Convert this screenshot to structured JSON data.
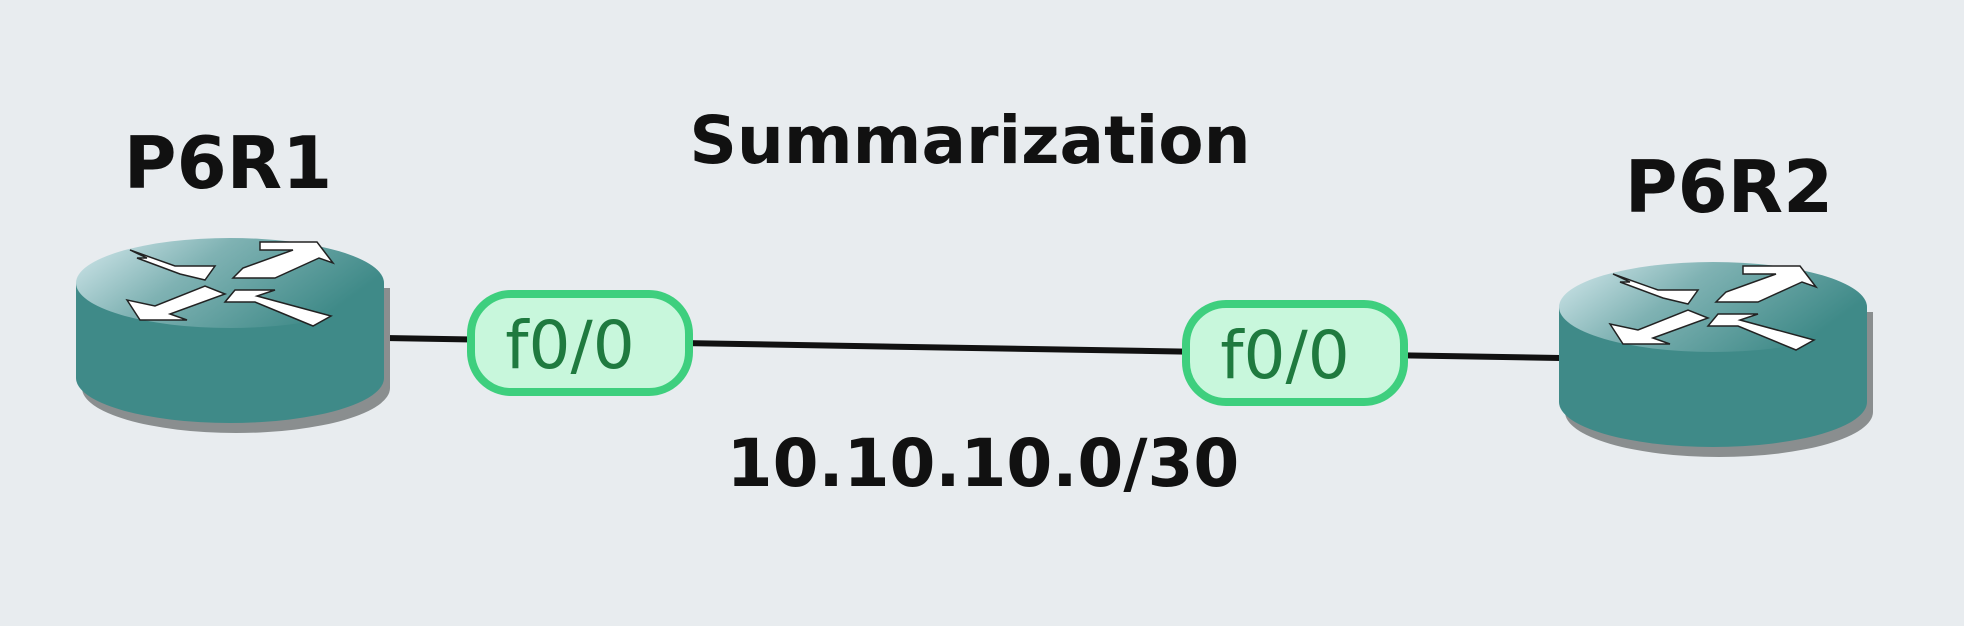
{
  "diagram": {
    "title": "Summarization",
    "network_label": "10.10.10.0/30",
    "routers": [
      {
        "name": "P6R1",
        "icon": "router-icon"
      },
      {
        "name": "P6R2",
        "icon": "router-icon"
      }
    ],
    "link": {
      "a_interface": "f0/0",
      "b_interface": "f0/0",
      "color": "#111111"
    },
    "colors": {
      "background": "#e8ecef",
      "router_body": "#3f8a88",
      "router_top_light": "#cfe6ea",
      "router_shadow": "#8a8e8f",
      "interface_fill": "#c8f7dc",
      "interface_border": "#3ecf7e",
      "interface_text": "#1f7a3f"
    }
  }
}
